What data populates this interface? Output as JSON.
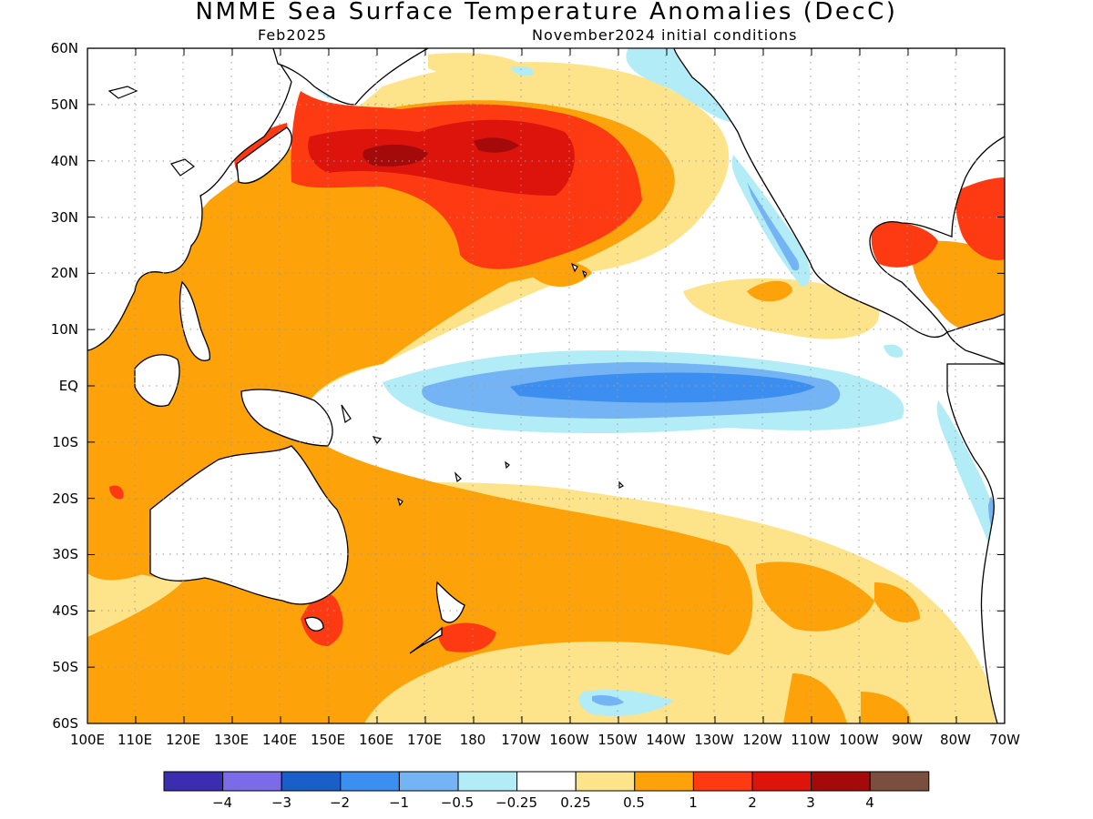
{
  "title": "NMME Sea Surface Temperature Anomalies (DecC)",
  "forecast_month": "Feb2025",
  "initial_conditions": "November2024 initial conditions",
  "latitude_labels": [
    "60N",
    "50N",
    "40N",
    "30N",
    "20N",
    "10N",
    "EQ",
    "10S",
    "20S",
    "30S",
    "40S",
    "50S",
    "60S"
  ],
  "longitude_labels": [
    "100E",
    "110E",
    "120E",
    "130E",
    "140E",
    "150E",
    "160E",
    "170E",
    "180",
    "170W",
    "160W",
    "150W",
    "140W",
    "130W",
    "120W",
    "110W",
    "100W",
    "90W",
    "80W",
    "70W"
  ],
  "colorbar": {
    "colors": [
      "#3b2db0",
      "#7b6be8",
      "#1a5fc8",
      "#3c8ff0",
      "#74b4f4",
      "#b2ecf6",
      "#ffffff",
      "#fde48a",
      "#fea20a",
      "#fd3a12",
      "#dd140c",
      "#a50a0a",
      "#7a4f40"
    ],
    "labels": [
      "−4",
      "−3",
      "−2",
      "−1",
      "−0.5",
      "−0.25",
      "0.25",
      "0.5",
      "1",
      "2",
      "3",
      "4"
    ]
  },
  "colors": {
    "land": "#ffffff",
    "coast": "#000000",
    "grid": "#9a9a9a",
    "weak_warm": "#fde48a",
    "moderate_warm": "#fea20a",
    "strong_warm": "#fd3a12",
    "very_strong_warm": "#dd140c",
    "extreme_warm": "#a50a0a",
    "weak_cool": "#b2ecf6",
    "moderate_cool": "#74b4f4",
    "strong_cool": "#3c8ff0"
  }
}
